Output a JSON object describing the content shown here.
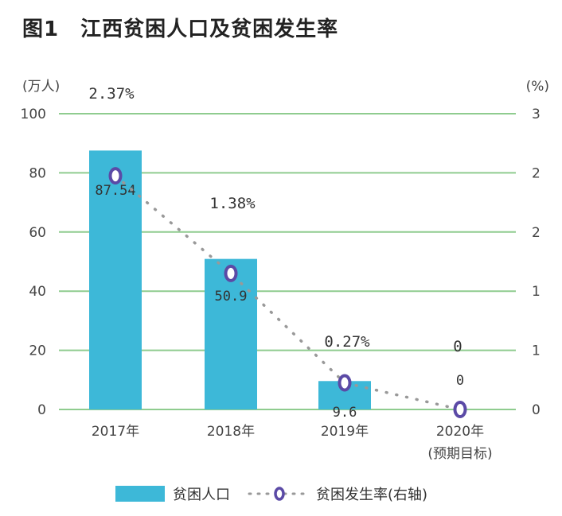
{
  "title": "图1　江西贫困人口及贫困发生率",
  "colors": {
    "bar": "#3db8d8",
    "grid": "#8fcc8f",
    "dot": "#999999",
    "marker": "#5b4aa6"
  },
  "chart_data": {
    "type": "bar",
    "categories": [
      "2017年",
      "2018年",
      "2019年",
      "2020年"
    ],
    "category_note": "(预期目标)",
    "series": [
      {
        "name": "贫困人口",
        "axis": "left",
        "type": "bar",
        "values": [
          87.54,
          50.9,
          9.6,
          0
        ],
        "labels": [
          "87.54",
          "50.9",
          "9.6",
          "0"
        ]
      },
      {
        "name": "贫困发生率(右轴)",
        "axis": "right",
        "type": "line",
        "values": [
          2.37,
          1.38,
          0.27,
          0
        ],
        "labels": [
          "2.37%",
          "1.38%",
          "0.27%",
          "0"
        ]
      }
    ],
    "left_axis": {
      "unit": "(万人)",
      "ylim": [
        0,
        100
      ],
      "ticks": [
        "0",
        "20",
        "40",
        "60",
        "80",
        "100"
      ]
    },
    "right_axis": {
      "unit": "(%)",
      "ylim": [
        0,
        3
      ],
      "ticks": [
        "0",
        "1",
        "1",
        "2",
        "2",
        "3"
      ]
    },
    "legend": [
      "贫困人口",
      "贫困发生率(右轴)"
    ],
    "grid": true
  }
}
